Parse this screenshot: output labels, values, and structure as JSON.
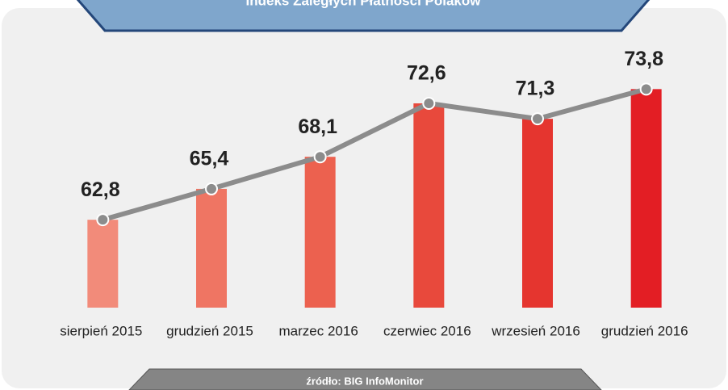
{
  "chart_data": {
    "type": "bar",
    "title": "Indeks Zaległych Płatności Polaków",
    "source": "źródło: BIG InfoMonitor",
    "categories": [
      "sierpień 2015",
      "grudzień 2015",
      "marzec 2016",
      "czerwiec 2016",
      "wrzesień 2016",
      "grudzień 2016"
    ],
    "values": [
      62.8,
      65.4,
      68.1,
      72.6,
      71.3,
      73.8
    ],
    "value_labels": [
      "62,8",
      "65,4",
      "68,1",
      "72,6",
      "71,3",
      "73,8"
    ],
    "colors": [
      "#f28b7a",
      "#ef7563",
      "#ec614f",
      "#e8493c",
      "#e5352f",
      "#e31e24"
    ],
    "line_color": "#8c8c8c",
    "ylim": [
      55.4,
      76
    ]
  }
}
